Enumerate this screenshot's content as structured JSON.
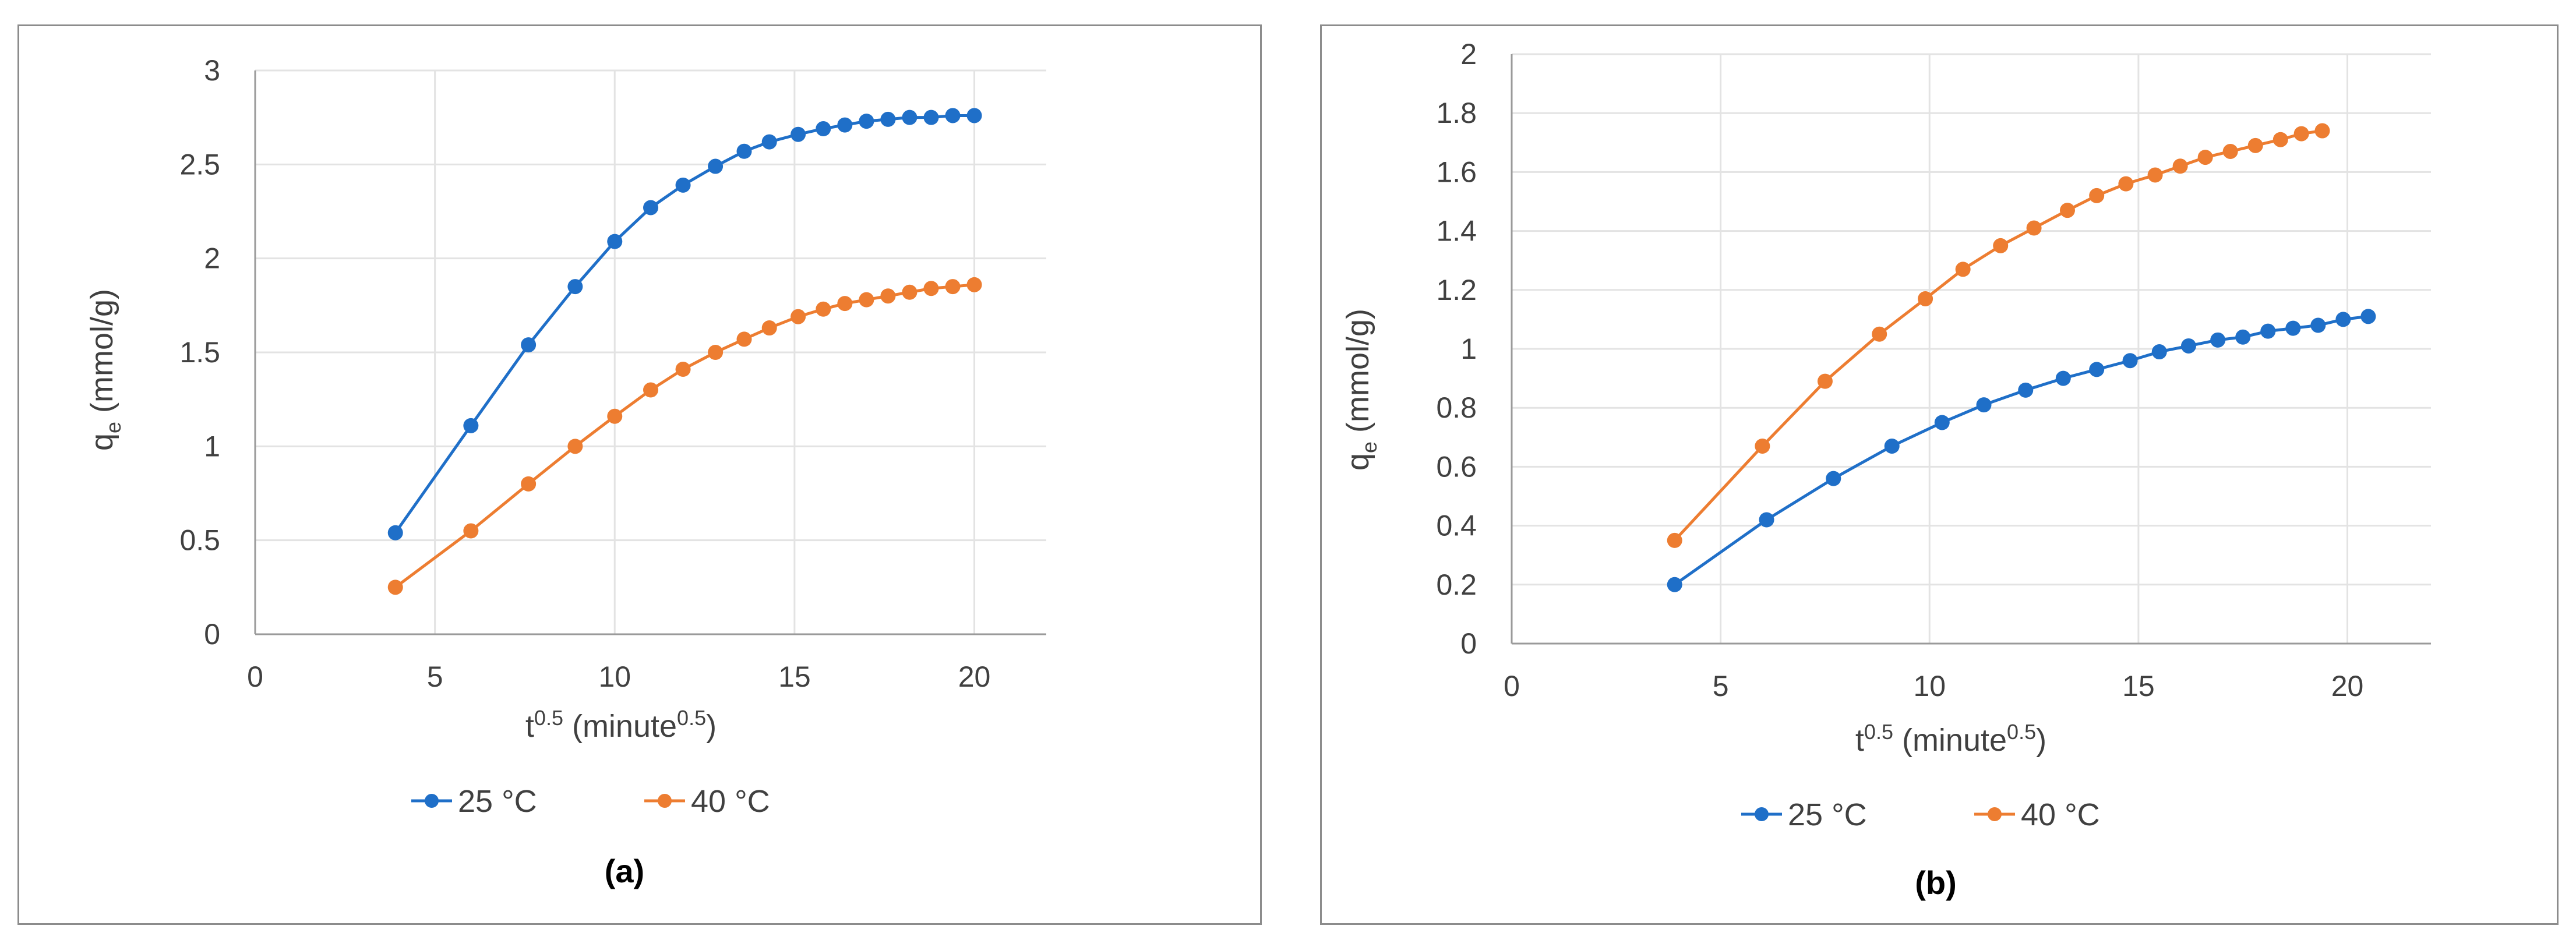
{
  "chart_data": [
    {
      "type": "line",
      "caption": "(a)",
      "xlabel": "t",
      "xlabel_sup": "0.5",
      "xlabel_unit": " (minute",
      "xlabel_unit_sup": "0.5",
      "xlabel_close": ")",
      "ylabel": "q",
      "ylabel_sub": "e",
      "ylabel_unit": " (mmol/g)",
      "xlim": [
        0,
        22
      ],
      "ylim": [
        0,
        3
      ],
      "xticks": [
        0,
        5,
        10,
        15,
        20
      ],
      "yticks": [
        0,
        0.5,
        1,
        1.5,
        2,
        2.5,
        3
      ],
      "grid": true,
      "legend_position": "bottom",
      "series": [
        {
          "name": "25 °C",
          "color": "#1f6fc8",
          "x": [
            3.9,
            6.0,
            7.6,
            8.9,
            10.0,
            11.0,
            11.9,
            12.8,
            13.6,
            14.3,
            15.1,
            15.8,
            16.4,
            17.0,
            17.6,
            18.2,
            18.8,
            19.4,
            20.0
          ],
          "y": [
            0.54,
            1.11,
            1.54,
            1.85,
            2.09,
            2.27,
            2.39,
            2.49,
            2.57,
            2.62,
            2.66,
            2.69,
            2.71,
            2.73,
            2.74,
            2.75,
            2.75,
            2.76,
            2.76
          ]
        },
        {
          "name": "40 °C",
          "color": "#ed7d31",
          "x": [
            3.9,
            6.0,
            7.6,
            8.9,
            10.0,
            11.0,
            11.9,
            12.8,
            13.6,
            14.3,
            15.1,
            15.8,
            16.4,
            17.0,
            17.6,
            18.2,
            18.8,
            19.4,
            20.0
          ],
          "y": [
            0.25,
            0.55,
            0.8,
            1.0,
            1.16,
            1.3,
            1.41,
            1.5,
            1.57,
            1.63,
            1.69,
            1.73,
            1.76,
            1.78,
            1.8,
            1.82,
            1.84,
            1.85,
            1.86
          ]
        }
      ]
    },
    {
      "type": "line",
      "caption": "(b)",
      "xlabel": "t",
      "xlabel_sup": "0.5",
      "xlabel_unit": " (minute",
      "xlabel_unit_sup": "0.5",
      "xlabel_close": ")",
      "ylabel": "q",
      "ylabel_sub": "e",
      "ylabel_unit": " (mmol/g)",
      "xlim": [
        0,
        22
      ],
      "ylim": [
        0,
        2
      ],
      "xticks": [
        0,
        5,
        10,
        15,
        20
      ],
      "yticks": [
        0,
        0.2,
        0.4,
        0.6,
        0.8,
        1,
        1.2,
        1.4,
        1.6,
        1.8,
        2
      ],
      "grid": true,
      "legend_position": "bottom",
      "series": [
        {
          "name": "25 °C",
          "color": "#1f6fc8",
          "x": [
            3.9,
            6.1,
            7.7,
            9.1,
            10.3,
            11.3,
            12.3,
            13.2,
            14.0,
            14.8,
            15.5,
            16.2,
            16.9,
            17.5,
            18.1,
            18.7,
            19.3,
            19.9,
            20.5
          ],
          "y": [
            0.2,
            0.42,
            0.56,
            0.67,
            0.75,
            0.81,
            0.86,
            0.9,
            0.93,
            0.96,
            0.99,
            1.01,
            1.03,
            1.04,
            1.06,
            1.07,
            1.08,
            1.1,
            1.11
          ]
        },
        {
          "name": "40 °C",
          "color": "#ed7d31",
          "x": [
            3.9,
            6.0,
            7.5,
            8.8,
            9.9,
            10.8,
            11.7,
            12.5,
            13.3,
            14.0,
            14.7,
            15.4,
            16.0,
            16.6,
            17.2,
            17.8,
            18.4,
            18.9,
            19.4
          ],
          "y": [
            0.35,
            0.67,
            0.89,
            1.05,
            1.17,
            1.27,
            1.35,
            1.41,
            1.47,
            1.52,
            1.56,
            1.59,
            1.62,
            1.65,
            1.67,
            1.69,
            1.71,
            1.73,
            1.74
          ]
        }
      ]
    }
  ]
}
